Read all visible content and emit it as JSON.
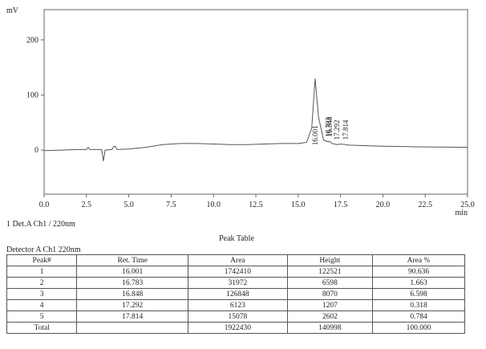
{
  "chart_data": {
    "type": "line",
    "y_unit": "mV",
    "x_unit": "min",
    "x": [
      0,
      1,
      2,
      2.5,
      2.6,
      2.7,
      3,
      3.4,
      3.5,
      3.6,
      4,
      4.1,
      4.2,
      4.3,
      5,
      6,
      7,
      8,
      9,
      10,
      11,
      12,
      13,
      14,
      15,
      15.5,
      15.8,
      16.0,
      16.2,
      16.5,
      16.783,
      16.848,
      17,
      17.292,
      17.5,
      17.814,
      18,
      19,
      20,
      22,
      25
    ],
    "series": [
      {
        "color": "#555555",
        "values": [
          -1,
          0,
          1,
          1,
          5,
          1,
          1,
          1,
          -20,
          0,
          1,
          6,
          7,
          1,
          2,
          5,
          10,
          12,
          12,
          11,
          10,
          10,
          11,
          12,
          12,
          14,
          40,
          130,
          60,
          18,
          15,
          16,
          12,
          10,
          11,
          10,
          9,
          8,
          7,
          6,
          5
        ]
      }
    ],
    "xlim": [
      0,
      25
    ],
    "ylim": [
      -80,
      255
    ],
    "xticks": [
      {
        "value": 0,
        "label": "0.0"
      },
      {
        "value": 2.5,
        "label": "2.5"
      },
      {
        "value": 5,
        "label": "5.0"
      },
      {
        "value": 7.5,
        "label": "7.5"
      },
      {
        "value": 10,
        "label": "10.0"
      },
      {
        "value": 12.5,
        "label": "12.5"
      },
      {
        "value": 15,
        "label": "15.0"
      },
      {
        "value": 17.5,
        "label": "17.5"
      },
      {
        "value": 20,
        "label": "20.0"
      },
      {
        "value": 22.5,
        "label": "22.5"
      },
      {
        "value": 25,
        "label": "25.0"
      }
    ],
    "yticks": [
      0,
      100,
      200
    ],
    "annotations": [
      {
        "x": 16.001,
        "text": "16.001"
      },
      {
        "x": 16.783,
        "text": "16.783"
      },
      {
        "x": 16.848,
        "text": "16.848"
      },
      {
        "x": 17.292,
        "text": "17.292"
      },
      {
        "x": 17.814,
        "text": "17.814"
      }
    ],
    "caption": "1 Det.A Ch1 / 220nm"
  },
  "table": {
    "title": "Peak Table",
    "subtitle": "Detector A Ch1 220nm",
    "header": [
      "Peak#",
      "Ret. Time",
      "Area",
      "Height",
      "Area %"
    ],
    "rows": [
      [
        "1",
        "16.001",
        "1742410",
        "122521",
        "90.636"
      ],
      [
        "2",
        "16.783",
        "31972",
        "6598",
        "1.663"
      ],
      [
        "3",
        "16.848",
        "126848",
        "8070",
        "6.598"
      ],
      [
        "4",
        "17.292",
        "6123",
        "1207",
        "0.318"
      ],
      [
        "5",
        "17.814",
        "15078",
        "2602",
        "0.784"
      ],
      [
        "Total",
        "",
        "1922430",
        "140998",
        "100.000"
      ]
    ]
  }
}
